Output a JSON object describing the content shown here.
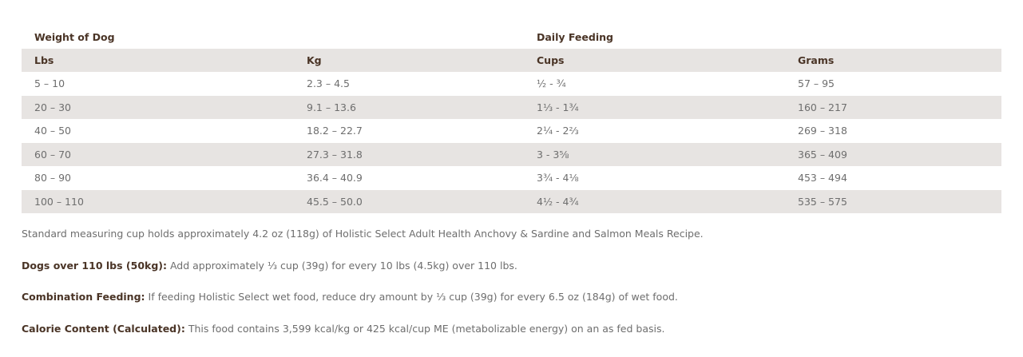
{
  "table": {
    "group_headers": {
      "weight": "Weight of Dog",
      "feeding": "Daily Feeding"
    },
    "columns": [
      "Lbs",
      "Kg",
      "Cups",
      "Grams"
    ],
    "rows": [
      [
        "5 – 10",
        "2.3 – 4.5",
        "½ - ¾",
        "57 – 95"
      ],
      [
        "20 – 30",
        "9.1 – 13.6",
        "1⅓ - 1¾",
        "160 – 217"
      ],
      [
        "40 – 50",
        "18.2 – 22.7",
        "2¼ - 2⅔",
        "269 – 318"
      ],
      [
        "60 – 70",
        "27.3 – 31.8",
        "3 - 3⅝",
        "365 – 409"
      ],
      [
        "80 – 90",
        "36.4 – 40.9",
        "3¾ - 4⅛",
        "453 – 494"
      ],
      [
        "100 – 110",
        "45.5 – 50.0",
        "4½ - 4¾",
        "535 – 575"
      ]
    ]
  },
  "notes": {
    "cup_note": "Standard measuring cup holds approximately 4.2 oz (118g) of Holistic Select Adult Health Anchovy & Sardine and Salmon Meals Recipe.",
    "over110": {
      "label": "Dogs over 110 lbs (50kg):",
      "text": " Add approximately ⅓ cup (39g) for every 10 lbs (4.5kg) over 110 lbs."
    },
    "combination": {
      "label": "Combination Feeding:",
      "text": " If feeding Holistic Select wet food, reduce dry amount by ⅓ cup (39g) for every 6.5 oz (184g) of wet food."
    },
    "calorie": {
      "label": "Calorie Content (Calculated):",
      "text": " This food contains 3,599 kcal/kg or 425 kcal/cup ME (metabolizable energy) on an as fed basis."
    }
  },
  "colors": {
    "header_text": "#4a3426",
    "body_text": "#6e6e6e",
    "stripe": "#e7e4e2"
  }
}
